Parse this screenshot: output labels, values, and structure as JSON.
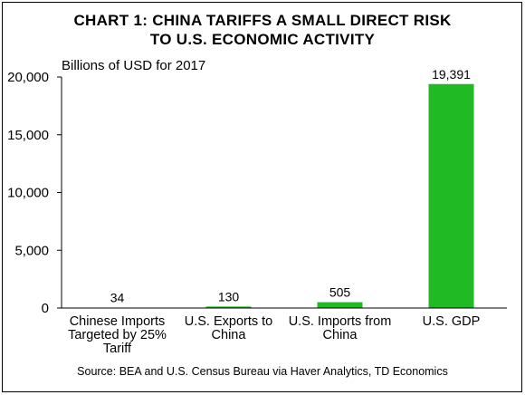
{
  "chart_data": {
    "type": "bar",
    "title": [
      "CHART 1: CHINA TARIFFS A SMALL DIRECT RISK",
      "TO U.S. ECONOMIC ACTIVITY"
    ],
    "unit_label": "Billions of USD for 2017",
    "categories": [
      [
        "Chinese Imports",
        "Targeted by 25%",
        "Tariff"
      ],
      [
        "U.S. Exports to",
        "China"
      ],
      [
        "U.S. Imports from",
        "China"
      ],
      [
        "U.S. GDP"
      ]
    ],
    "values": [
      34,
      130,
      505,
      19391
    ],
    "data_labels": [
      "34",
      "130",
      "505",
      "19,391"
    ],
    "yticks": [
      0,
      5000,
      10000,
      15000,
      20000
    ],
    "ytick_labels": [
      "0",
      "5,000",
      "10,000",
      "15,000",
      "20,000"
    ],
    "ylim": [
      0,
      20000
    ],
    "bar_color": "#1FBA24",
    "grid": false,
    "source": "Source: BEA and U.S. Census Bureau via Haver Analytics, TD Economics"
  }
}
